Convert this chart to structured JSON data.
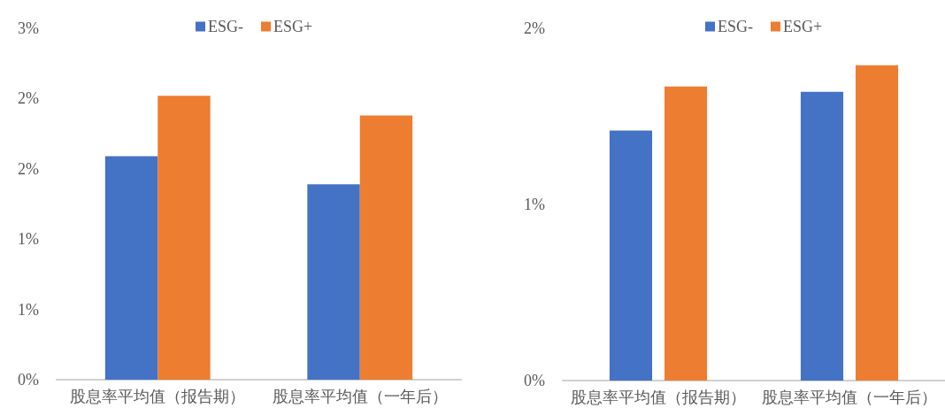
{
  "chart_data": [
    {
      "type": "bar",
      "categories": [
        "股息率平均值（报告期）",
        "股息率平均值（一年后）"
      ],
      "series": [
        {
          "name": "ESG-",
          "color": "#4472c4",
          "values": [
            1.59,
            1.39
          ]
        },
        {
          "name": "ESG+",
          "color": "#ed7d31",
          "values": [
            2.02,
            1.88
          ]
        }
      ],
      "ylim": [
        0,
        2.5
      ],
      "yticks": [
        {
          "value": 0,
          "label": "0%"
        },
        {
          "value": 0.5,
          "label": "1%"
        },
        {
          "value": 1,
          "label": "1%"
        },
        {
          "value": 1.5,
          "label": "2%"
        },
        {
          "value": 2,
          "label": "2%"
        },
        {
          "value": 2.5,
          "label": "3%"
        }
      ],
      "grid": false,
      "legend": "top"
    },
    {
      "type": "bar",
      "categories": [
        "股息率平均值（报告期）",
        "股息率平均值（一年后）"
      ],
      "series": [
        {
          "name": "ESG-",
          "color": "#4472c4",
          "values": [
            1.42,
            1.64
          ]
        },
        {
          "name": "ESG+",
          "color": "#ed7d31",
          "values": [
            1.67,
            1.79
          ]
        }
      ],
      "ylim": [
        0,
        2
      ],
      "yticks": [
        {
          "value": 0,
          "label": "0%"
        },
        {
          "value": 1,
          "label": "1%"
        },
        {
          "value": 2,
          "label": "2%"
        }
      ],
      "grid": false,
      "legend": "top"
    }
  ]
}
